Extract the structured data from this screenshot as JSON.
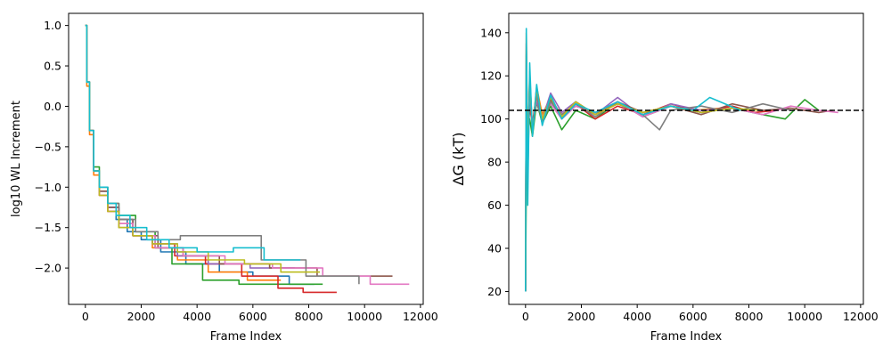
{
  "chart_data": [
    {
      "type": "line",
      "title": "",
      "xlabel": "Frame Index",
      "ylabel": "log10 WL Increment",
      "xlim": [
        -600,
        12100
      ],
      "ylim": [
        -2.45,
        1.15
      ],
      "xticks": [
        0,
        2000,
        4000,
        6000,
        8000,
        10000,
        12000
      ],
      "yticks": [
        1.0,
        0.5,
        0.0,
        -0.5,
        -1.0,
        -1.5,
        -2.0
      ],
      "ytick_labels": [
        "1.0",
        "0.5",
        "0.0",
        "−0.5",
        "−1.0",
        "−1.5",
        "−2.0"
      ],
      "grid": false,
      "legend": "none",
      "colors": [
        "#1f77b4",
        "#ff7f0e",
        "#2ca02c",
        "#d62728",
        "#9467bd",
        "#8c564b",
        "#e377c2",
        "#7f7f7f",
        "#bcbd22",
        "#17becf"
      ],
      "series": [
        {
          "x": [
            0,
            50,
            150,
            300,
            500,
            800,
            1100,
            1500,
            2000,
            2700,
            3600,
            4800,
            6000,
            7300,
            8200
          ],
          "y": [
            1.0,
            0.3,
            -0.3,
            -0.8,
            -1.05,
            -1.25,
            -1.4,
            -1.55,
            -1.65,
            -1.8,
            -1.95,
            -2.05,
            -2.1,
            -2.2,
            -2.2
          ]
        },
        {
          "x": [
            0,
            50,
            150,
            300,
            500,
            800,
            1200,
            1700,
            2400,
            3300,
            4400,
            5800,
            7000
          ],
          "y": [
            1.0,
            0.25,
            -0.35,
            -0.85,
            -1.1,
            -1.3,
            -1.45,
            -1.6,
            -1.75,
            -1.9,
            -2.05,
            -2.15,
            -2.15
          ]
        },
        {
          "x": [
            0,
            50,
            150,
            300,
            500,
            800,
            1200,
            1800,
            2500,
            3100,
            4200,
            5500,
            6800,
            8500
          ],
          "y": [
            1.0,
            0.3,
            -0.3,
            -0.75,
            -1.0,
            -1.2,
            -1.35,
            -1.55,
            -1.75,
            -1.95,
            -2.15,
            -2.2,
            -2.2,
            -2.2
          ]
        },
        {
          "x": [
            0,
            50,
            150,
            300,
            500,
            800,
            1200,
            1700,
            2400,
            3200,
            4300,
            5600,
            6900,
            7800,
            9000
          ],
          "y": [
            1.0,
            0.3,
            -0.3,
            -0.8,
            -1.1,
            -1.3,
            -1.5,
            -1.6,
            -1.7,
            -1.85,
            -1.95,
            -2.1,
            -2.25,
            -2.3,
            -2.3
          ]
        },
        {
          "x": [
            0,
            50,
            150,
            300,
            500,
            800,
            1200,
            1700,
            2400,
            3300,
            4400,
            5900,
            7500
          ],
          "y": [
            1.0,
            0.3,
            -0.3,
            -0.8,
            -1.05,
            -1.25,
            -1.4,
            -1.6,
            -1.7,
            -1.85,
            -1.95,
            -2.0,
            -2.0
          ]
        },
        {
          "x": [
            0,
            50,
            150,
            300,
            500,
            800,
            1200,
            1700,
            2600,
            3500,
            4800,
            6600,
            8300,
            11000
          ],
          "y": [
            1.0,
            0.3,
            -0.3,
            -0.8,
            -1.05,
            -1.25,
            -1.4,
            -1.6,
            -1.75,
            -1.85,
            -1.95,
            -2.0,
            -2.1,
            -2.1
          ]
        },
        {
          "x": [
            0,
            50,
            150,
            300,
            500,
            800,
            1200,
            1700,
            2500,
            3500,
            5000,
            6700,
            8500,
            10200,
            11600
          ],
          "y": [
            1.0,
            0.3,
            -0.3,
            -0.8,
            -1.1,
            -1.3,
            -1.45,
            -1.6,
            -1.75,
            -1.85,
            -1.95,
            -2.0,
            -2.1,
            -2.2,
            -2.2
          ]
        },
        {
          "x": [
            0,
            50,
            150,
            300,
            500,
            800,
            1200,
            1800,
            2600,
            3400,
            4800,
            6300,
            7900,
            9800
          ],
          "y": [
            1.0,
            0.3,
            -0.3,
            -0.8,
            -1.0,
            -1.2,
            -1.4,
            -1.55,
            -1.65,
            -1.6,
            -1.6,
            -1.9,
            -2.1,
            -2.2
          ]
        },
        {
          "x": [
            0,
            50,
            150,
            300,
            500,
            800,
            1200,
            1700,
            2400,
            3300,
            4400,
            5700,
            7000,
            8400
          ],
          "y": [
            1.0,
            0.3,
            -0.3,
            -0.8,
            -1.1,
            -1.3,
            -1.5,
            -1.6,
            -1.7,
            -1.8,
            -1.9,
            -1.95,
            -2.05,
            -2.05
          ]
        },
        {
          "x": [
            0,
            50,
            150,
            300,
            500,
            800,
            1100,
            1600,
            2200,
            3000,
            4000,
            5300,
            6400,
            7700
          ],
          "y": [
            1.0,
            0.3,
            -0.3,
            -0.8,
            -1.0,
            -1.2,
            -1.35,
            -1.5,
            -1.65,
            -1.75,
            -1.8,
            -1.75,
            -1.9,
            -1.9
          ]
        }
      ]
    },
    {
      "type": "line",
      "title": "",
      "xlabel": "Frame Index",
      "ylabel": "ΔG (kT)",
      "xlim": [
        -600,
        12100
      ],
      "ylim": [
        14,
        149
      ],
      "xticks": [
        0,
        2000,
        4000,
        6000,
        8000,
        10000,
        12000
      ],
      "yticks": [
        20,
        40,
        60,
        80,
        100,
        120,
        140
      ],
      "grid": false,
      "legend": "none",
      "reference_line": {
        "y": 104,
        "style": "dashed",
        "color": "#000000"
      },
      "colors": [
        "#1f77b4",
        "#ff7f0e",
        "#2ca02c",
        "#d62728",
        "#9467bd",
        "#8c564b",
        "#e377c2",
        "#7f7f7f",
        "#bcbd22",
        "#17becf"
      ],
      "series": [
        {
          "x": [
            0,
            30,
            80,
            150,
            250,
            400,
            600,
            900,
            1300,
            1800,
            2500,
            3300,
            4200,
            5200,
            6300,
            7400,
            8200
          ],
          "y": [
            20,
            130,
            85,
            112,
            96,
            110,
            100,
            108,
            101,
            106,
            103,
            107,
            102,
            106,
            103,
            105,
            104
          ]
        },
        {
          "x": [
            0,
            30,
            80,
            150,
            250,
            400,
            600,
            900,
            1300,
            1800,
            2500,
            3300,
            4200,
            5200,
            6000,
            7000
          ],
          "y": [
            20,
            140,
            80,
            120,
            95,
            115,
            102,
            110,
            100,
            108,
            102,
            107,
            103,
            106,
            104,
            105
          ]
        },
        {
          "x": [
            0,
            30,
            80,
            150,
            250,
            400,
            600,
            900,
            1300,
            1800,
            2500,
            3300,
            4200,
            5200,
            6300,
            7400,
            8500,
            9300,
            10000,
            10500
          ],
          "y": [
            20,
            70,
            95,
            100,
            92,
            108,
            98,
            106,
            95,
            104,
            100,
            108,
            101,
            106,
            103,
            105,
            102,
            100,
            109,
            104
          ]
        },
        {
          "x": [
            0,
            30,
            80,
            150,
            250,
            400,
            600,
            900,
            1300,
            1800,
            2500,
            3300,
            4200,
            5200,
            6300,
            7400,
            8200,
            9000
          ],
          "y": [
            20,
            125,
            90,
            105,
            98,
            112,
            100,
            109,
            102,
            107,
            100,
            106,
            102,
            107,
            103,
            106,
            103,
            104
          ]
        },
        {
          "x": [
            0,
            30,
            80,
            150,
            250,
            400,
            600,
            900,
            1300,
            1800,
            2500,
            3300,
            4200,
            5200,
            6300,
            7500
          ],
          "y": [
            20,
            110,
            88,
            115,
            97,
            108,
            100,
            112,
            103,
            108,
            102,
            110,
            101,
            107,
            104,
            105
          ]
        },
        {
          "x": [
            0,
            30,
            80,
            150,
            250,
            400,
            600,
            900,
            1300,
            1800,
            2500,
            3300,
            4200,
            5200,
            6300,
            7400,
            8500,
            9500,
            10500,
            11000
          ],
          "y": [
            20,
            135,
            72,
            118,
            94,
            112,
            99,
            109,
            101,
            107,
            102,
            108,
            103,
            106,
            102,
            107,
            104,
            105,
            103,
            104
          ]
        },
        {
          "x": [
            0,
            30,
            80,
            150,
            250,
            400,
            600,
            900,
            1300,
            1800,
            2500,
            3300,
            4200,
            5200,
            6300,
            7400,
            8500,
            9500,
            10500,
            11200
          ],
          "y": [
            20,
            128,
            84,
            114,
            96,
            110,
            101,
            107,
            100,
            106,
            103,
            108,
            101,
            106,
            103,
            105,
            102,
            106,
            104,
            103
          ]
        },
        {
          "x": [
            0,
            30,
            80,
            150,
            250,
            400,
            600,
            900,
            1300,
            1800,
            2500,
            3300,
            4200,
            4800,
            5200,
            6300,
            7400,
            8500,
            9500
          ],
          "y": [
            20,
            120,
            86,
            116,
            95,
            111,
            98,
            108,
            102,
            107,
            101,
            108,
            102,
            95,
            104,
            106,
            103,
            107,
            104
          ]
        },
        {
          "x": [
            0,
            30,
            80,
            150,
            250,
            400,
            600,
            900,
            1300,
            1800,
            2500,
            3300,
            4200,
            5200,
            6300,
            7400,
            8400
          ],
          "y": [
            20,
            132,
            78,
            122,
            93,
            114,
            100,
            110,
            101,
            108,
            102,
            107,
            103,
            106,
            103,
            105,
            104
          ]
        },
        {
          "x": [
            0,
            30,
            80,
            150,
            250,
            400,
            600,
            900,
            1300,
            1800,
            2500,
            3300,
            4200,
            5200,
            6000,
            6600,
            7700
          ],
          "y": [
            20,
            142,
            60,
            126,
            92,
            116,
            97,
            111,
            100,
            107,
            103,
            108,
            102,
            106,
            104,
            110,
            104
          ]
        }
      ]
    }
  ]
}
